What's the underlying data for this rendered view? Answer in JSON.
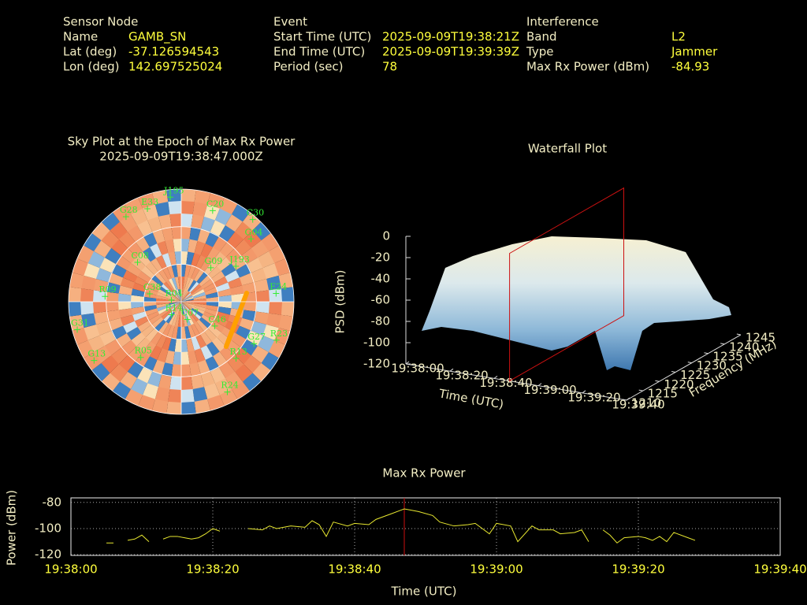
{
  "header": {
    "sensor": {
      "title": "Sensor Node",
      "rows": [
        [
          "Name",
          "GAMB_SN"
        ],
        [
          "Lat (deg)",
          "-37.126594543"
        ],
        [
          "Lon (deg)",
          "142.697525024"
        ]
      ]
    },
    "event": {
      "title": "Event",
      "rows": [
        [
          "Start Time (UTC)",
          "2025-09-09T19:38:21Z"
        ],
        [
          "End Time (UTC)",
          "2025-09-09T19:39:39Z"
        ],
        [
          "Period (sec)",
          "78"
        ]
      ]
    },
    "interference": {
      "title": "Interference",
      "rows": [
        [
          "Band",
          "L2"
        ],
        [
          "Type",
          "Jammer"
        ],
        [
          "Max Rx Power (dBm)",
          "-84.93"
        ]
      ]
    }
  },
  "chart_data": [
    {
      "type": "polar",
      "title": "Sky Plot at the Epoch of Max Rx Power",
      "subtitle": "2025-09-09T19:38:47.000Z",
      "color": "#33ee33",
      "satellites": [
        {
          "name": "J195",
          "az": 354,
          "el": 6
        },
        {
          "name": "C20",
          "az": 19,
          "el": 13
        },
        {
          "name": "C30",
          "az": 41,
          "el": 3
        },
        {
          "name": "G04",
          "az": 48,
          "el": 15
        },
        {
          "name": "J193",
          "az": 57,
          "el": 38
        },
        {
          "name": "G09",
          "az": 41,
          "el": 54
        },
        {
          "name": "E24",
          "az": 85,
          "el": 14
        },
        {
          "name": "G27",
          "az": 120,
          "el": 23
        },
        {
          "name": "R23",
          "az": 112,
          "el": 8
        },
        {
          "name": "R13",
          "az": 136,
          "el": 27
        },
        {
          "name": "R24",
          "az": 153,
          "el": 9
        },
        {
          "name": "C46",
          "az": 126,
          "el": 57
        },
        {
          "name": "C07",
          "az": 161,
          "el": 75
        },
        {
          "name": "R05",
          "az": 216,
          "el": 35
        },
        {
          "name": "G31",
          "az": 255,
          "el": 4
        },
        {
          "name": "G13",
          "az": 236,
          "el": 6
        },
        {
          "name": "R09",
          "az": 274,
          "el": 29
        },
        {
          "name": "G28",
          "az": 327,
          "el": 9
        },
        {
          "name": "E33",
          "az": 340,
          "el": 11
        },
        {
          "name": "C08",
          "az": 312,
          "el": 43
        },
        {
          "name": "R04",
          "az": 279,
          "el": 82
        },
        {
          "name": "R14",
          "az": 217,
          "el": 77
        },
        {
          "name": "C38",
          "az": 284,
          "el": 64
        }
      ]
    },
    {
      "type": "surface",
      "title": "Waterfall Plot",
      "xlabel": "Time (UTC)",
      "ylabel": "Frequency (MHz)",
      "zlabel": "PSD (dBm)",
      "xlim": [
        "19:38:00",
        "19:39:40"
      ],
      "xticks": [
        "19:38:00",
        "19:38:20",
        "19:38:40",
        "19:39:00",
        "19:39:20",
        "19:39:40"
      ],
      "ylim": [
        1210,
        1245
      ],
      "yticks": [
        1210,
        1215,
        1220,
        1225,
        1230,
        1235,
        1240,
        1245
      ],
      "zlim": [
        -120,
        0
      ],
      "zticks": [
        0,
        -20,
        -40,
        -60,
        -80,
        -100,
        -120
      ],
      "marker": "19:38:47",
      "marker_color": "#cc1111"
    },
    {
      "type": "line",
      "title": "Max Rx Power",
      "xlabel": "Time (UTC)",
      "ylabel": "Power (dBm)",
      "color": "#e8e830",
      "xlim": [
        "19:38:00",
        "19:39:40"
      ],
      "xticks": [
        "19:38:00",
        "19:38:20",
        "19:38:40",
        "19:39:00",
        "19:39:20",
        "19:39:40"
      ],
      "ylim": [
        -120.5,
        -76.5
      ],
      "yticks": [
        -80,
        -100,
        -120
      ],
      "grid": true,
      "marker": "19:38:47",
      "marker_color": "#cc1111",
      "x": [
        "19:38:05",
        "19:38:06",
        "19:38:07",
        "19:38:08",
        "19:38:09",
        "19:38:10",
        "19:38:11",
        "19:38:12",
        "19:38:13",
        "19:38:14",
        "19:38:15",
        "19:38:16",
        "19:38:17",
        "19:38:18",
        "19:38:19",
        "19:38:20",
        "19:38:21",
        "19:38:23",
        "19:38:25",
        "19:38:27",
        "19:38:28",
        "19:38:29",
        "19:38:31",
        "19:38:33",
        "19:38:34",
        "19:38:35",
        "19:38:36",
        "19:38:37",
        "19:38:39",
        "19:38:40",
        "19:38:42",
        "19:38:43",
        "19:38:45",
        "19:38:47",
        "19:38:49",
        "19:38:51",
        "19:38:52",
        "19:38:54",
        "19:38:56",
        "19:38:57",
        "19:38:59",
        "19:39:00",
        "19:39:02",
        "19:39:03",
        "19:39:05",
        "19:39:06",
        "19:39:08",
        "19:39:09",
        "19:39:11",
        "19:39:12",
        "19:39:13",
        "19:39:14",
        "19:39:15",
        "19:39:16",
        "19:39:17",
        "19:39:18",
        "19:39:20",
        "19:39:21",
        "19:39:22",
        "19:39:23",
        "19:39:24",
        "19:39:25",
        "19:39:27",
        "19:39:28"
      ],
      "values": [
        -111,
        -111,
        null,
        -109,
        -108,
        -105,
        -110,
        null,
        -108,
        -106,
        -106,
        -107,
        -108,
        -107,
        -104,
        -100,
        -102,
        null,
        -100,
        -101,
        -98,
        -100,
        -98,
        -99,
        -94,
        -97,
        -106,
        -95,
        -98,
        -96,
        -97,
        -93,
        -89,
        -84.93,
        -87,
        -90,
        -95,
        -98,
        -97,
        -96,
        -104,
        -96,
        -98,
        -110,
        -98,
        -101,
        -101,
        -104,
        -103,
        -101,
        -110,
        null,
        -101,
        -105,
        -111,
        -107,
        -106,
        -107,
        -109,
        -106,
        -110,
        -103,
        -107,
        -109
      ]
    }
  ]
}
